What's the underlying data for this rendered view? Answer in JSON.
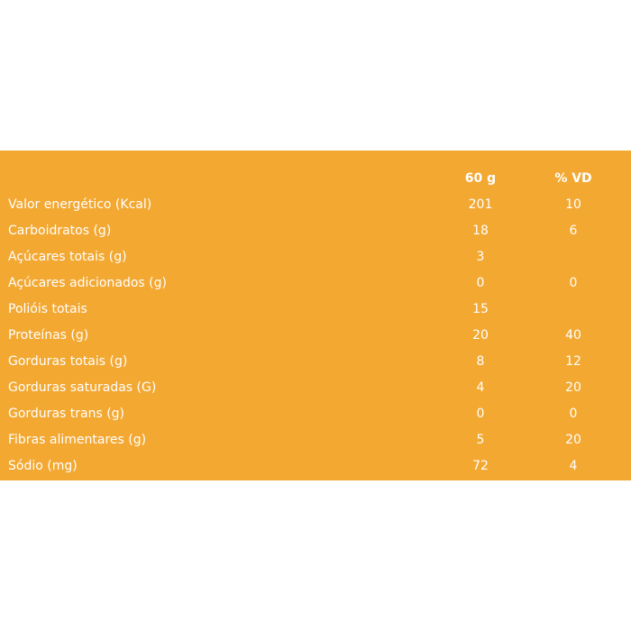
{
  "header": {
    "col1": "60 g",
    "col2": "% VD"
  },
  "rows": [
    {
      "label": "Valor energético (Kcal)",
      "amount": "201",
      "vd": "10"
    },
    {
      "label": "Carboidratos (g)",
      "amount": "18",
      "vd": "6"
    },
    {
      "label": "Açúcares totais (g)",
      "amount": "3",
      "vd": ""
    },
    {
      "label": "Açúcares adicionados (g)",
      "amount": "0",
      "vd": "0"
    },
    {
      "label": "Polióis totais",
      "amount": "15",
      "vd": ""
    },
    {
      "label": "Proteínas (g)",
      "amount": "20",
      "vd": "40"
    },
    {
      "label": "Gorduras totais (g)",
      "amount": "8",
      "vd": "12"
    },
    {
      "label": "Gorduras saturadas (G)",
      "amount": "4",
      "vd": "20"
    },
    {
      "label": "Gorduras trans (g)",
      "amount": "0",
      "vd": "0"
    },
    {
      "label": "Fibras alimentares (g)",
      "amount": "5",
      "vd": "20"
    },
    {
      "label": "Sódio (mg)",
      "amount": "72",
      "vd": "4"
    }
  ],
  "colors": {
    "background": "#F3A832",
    "text": "#FFFFFF"
  }
}
